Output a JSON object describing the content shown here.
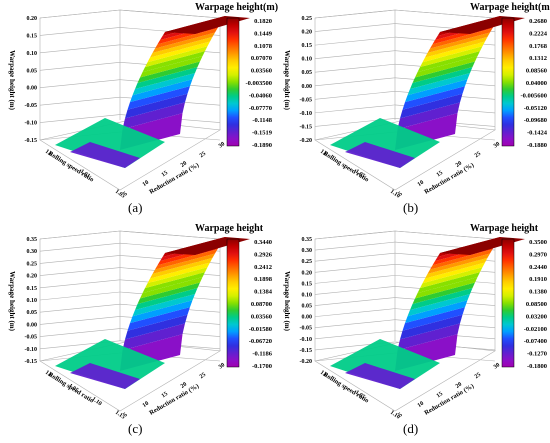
{
  "colorbar_colors": [
    "#8b0000",
    "#c00000",
    "#e01010",
    "#ff3000",
    "#ff6600",
    "#ff9900",
    "#ffcc00",
    "#ffee00",
    "#d4f000",
    "#88e000",
    "#30cc30",
    "#00cc88",
    "#00c8d0",
    "#00a0ff",
    "#2050ff",
    "#3030e0",
    "#6020d0",
    "#8a10c8",
    "#a000b0"
  ],
  "chart_data": [
    {
      "type": "surface",
      "caption": "(a)",
      "colorbar_title": "Warpage height(m)",
      "colorbar_ticks": [
        "0.1820",
        "0.1449",
        "0.1078",
        "0.07070",
        "0.03560",
        "-0.003500",
        "-0.04060",
        "-0.07770",
        "-0.1148",
        "-0.1519",
        "-0.1890"
      ],
      "zlabel": "Warpage height (m)",
      "ylabel": "Rolling speed ratio",
      "xlabel": "Reduction ratio (%)",
      "z_ticks": [
        "0.20",
        "0.15",
        "0.10",
        "0.05",
        "0.00",
        "-0.05",
        "-0.10",
        "-0.15"
      ],
      "y_ticks": [
        "1.0",
        "1.01",
        "1.05"
      ],
      "x_ticks": [
        "5",
        "10",
        "15",
        "20",
        "25",
        "30"
      ],
      "zlim": [
        -0.15,
        0.2
      ]
    },
    {
      "type": "surface",
      "caption": "(b)",
      "colorbar_title": "Warpage height(m)",
      "colorbar_ticks": [
        "0.2680",
        "0.2224",
        "0.1768",
        "0.1312",
        "0.08560",
        "0.04000",
        "-0.005600",
        "-0.05120",
        "-0.09680",
        "-0.1424",
        "-0.1880"
      ],
      "zlabel": "Warpage height (m)",
      "ylabel": "Rolling speed ratio",
      "xlabel": "Reduction ratio (%)",
      "z_ticks": [
        "0.25",
        "0.20",
        "0.15",
        "0.10",
        "0.05",
        "0.00",
        "-0.05",
        "-0.10",
        "-0.15",
        "-0.20"
      ],
      "y_ticks": [
        "1.0",
        "1.05",
        "1.10"
      ],
      "x_ticks": [
        "5",
        "10",
        "15",
        "20",
        "25",
        "30"
      ],
      "zlim": [
        -0.2,
        0.3
      ]
    },
    {
      "type": "surface",
      "caption": "(c)",
      "colorbar_title": "Warpage height",
      "colorbar_ticks": [
        "0.3440",
        "0.2926",
        "0.2412",
        "0.1898",
        "0.1384",
        "0.08700",
        "0.03560",
        "-0.01580",
        "-0.06720",
        "-0.1186",
        "-0.1700"
      ],
      "zlabel": "Warpage height (m)",
      "ylabel": "Rolling speed ratio",
      "xlabel": "Reduction ratio (%)",
      "z_ticks": [
        "0.35",
        "0.30",
        "0.25",
        "0.20",
        "0.15",
        "0.10",
        "0.05",
        "0.00",
        "-0.05",
        "-0.10",
        "-0.15"
      ],
      "y_ticks": [
        "1.0",
        "1.05",
        "1.10",
        "1.15"
      ],
      "x_ticks": [
        "5",
        "10",
        "15",
        "20",
        "25",
        "30"
      ],
      "zlim": [
        -0.15,
        0.35
      ]
    },
    {
      "type": "surface",
      "caption": "(d)",
      "colorbar_title": "Warpage height",
      "colorbar_ticks": [
        "0.3500",
        "0.2970",
        "0.2440",
        "0.1910",
        "0.1380",
        "0.08500",
        "0.03200",
        "-0.02100",
        "-0.07400",
        "-0.1270",
        "-0.1800"
      ],
      "zlabel": "Warpage height (m)",
      "ylabel": "Rolling speed ratio",
      "xlabel": "Reduction ratio (%)",
      "z_ticks": [
        "0.35",
        "0.30",
        "0.25",
        "0.20",
        "0.15",
        "0.10",
        "0.05",
        "0.00",
        "-0.05",
        "-0.10",
        "-0.15",
        "-0.20"
      ],
      "y_ticks": [
        "1.0",
        "1.05",
        "1.10"
      ],
      "x_ticks": [
        "5",
        "10",
        "15",
        "20",
        "25",
        "30"
      ],
      "zlim": [
        -0.2,
        0.35
      ]
    }
  ]
}
